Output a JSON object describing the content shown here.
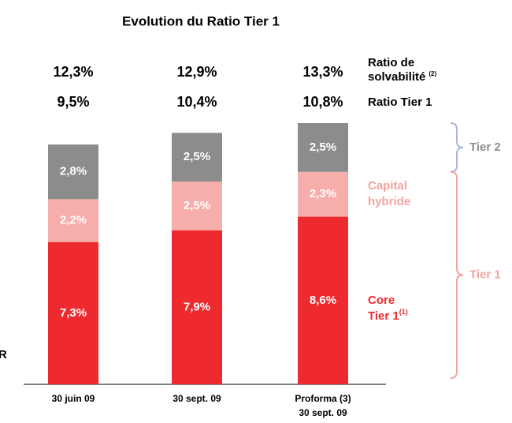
{
  "chart_data": {
    "type": "stacked_bar",
    "title": "Evolution du Ratio Tier 1",
    "categories": [
      [
        "30 juin 09"
      ],
      [
        "30 sept. 09"
      ],
      [
        "Proforma (3)",
        "30 sept. 09"
      ]
    ],
    "series": [
      {
        "name": [
          "Core",
          "Tier 1"
        ],
        "note": "(1)",
        "color": "#ee2a2e",
        "values": [
          7.3,
          7.9,
          8.6
        ],
        "value_labels": [
          "7,3%",
          "7,9%",
          "8,6%"
        ]
      },
      {
        "name": [
          "Capital",
          "hybride"
        ],
        "color": "#f7aeaa",
        "values": [
          2.2,
          2.5,
          2.3
        ],
        "value_labels": [
          "2,2%",
          "2,5%",
          "2,3%"
        ]
      },
      {
        "name": [
          "Tier 2"
        ],
        "color": "#8c8c8c",
        "values": [
          2.8,
          2.5,
          2.5
        ],
        "value_labels": [
          "2,8%",
          "2,5%",
          "2,5%"
        ]
      }
    ],
    "totals": [
      {
        "label": [
          "Ratio de",
          "solvabilité"
        ],
        "note": "(2)",
        "values": [
          12.3,
          12.9,
          13.3
        ],
        "value_labels": [
          "12,3%",
          "12,9%",
          "13,3%"
        ]
      },
      {
        "label": [
          "Ratio Tier 1"
        ],
        "values": [
          9.5,
          10.4,
          10.8
        ],
        "value_labels": [
          "9,5%",
          "10,4%",
          "10,8%"
        ]
      }
    ],
    "brace_labels": {
      "tier2": "Tier 2",
      "tier1": "Tier 1"
    },
    "fragment": "R"
  }
}
